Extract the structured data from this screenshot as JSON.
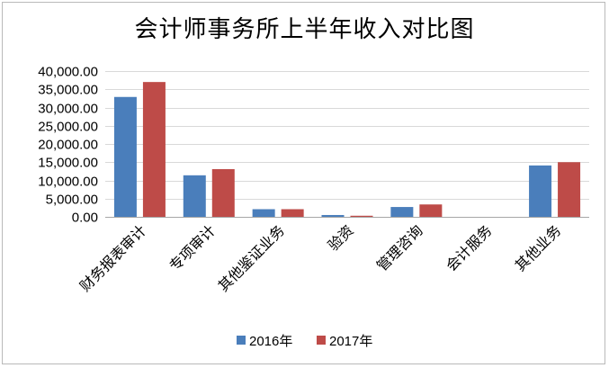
{
  "chart_data": {
    "type": "bar",
    "title": "会计师事务所上半年收入对比图",
    "categories": [
      "财务报表审计",
      "专项审计",
      "其他鉴证业务",
      "验资",
      "管理咨询",
      "会计服务",
      "其他业务"
    ],
    "series": [
      {
        "name": "2016年",
        "color": "#4a7ebb",
        "values": [
          32900,
          11400,
          2100,
          500,
          2700,
          0,
          14100
        ]
      },
      {
        "name": "2017年",
        "color": "#be4b48",
        "values": [
          37000,
          13100,
          2100,
          300,
          3400,
          0,
          15000
        ]
      }
    ],
    "yticks": [
      "0.00",
      "5,000.00",
      "10,000.00",
      "15,000.00",
      "20,000.00",
      "25,000.00",
      "30,000.00",
      "35,000.00",
      "40,000.00"
    ],
    "ylim": [
      0,
      40000
    ],
    "grid": true,
    "legend_position": "bottom"
  }
}
